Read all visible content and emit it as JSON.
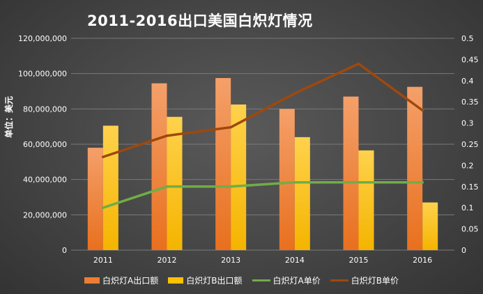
{
  "chart_data": {
    "type": "bar",
    "title": "2011-2016出口美国白炽灯情况",
    "ylabel": "单位：美元",
    "categories": [
      "2011",
      "2012",
      "2013",
      "2014",
      "2015",
      "2016"
    ],
    "ylim": [
      0,
      120000000
    ],
    "y_ticks": [
      "0",
      "20,000,000",
      "40,000,000",
      "60,000,000",
      "80,000,000",
      "100,000,000",
      "120,000,000"
    ],
    "y2lim": [
      0,
      0.5
    ],
    "y2_ticks": [
      "0",
      "0.05",
      "0.1",
      "0.15",
      "0.2",
      "0.25",
      "0.3",
      "0.35",
      "0.4",
      "0.45",
      "0.5"
    ],
    "grid": true,
    "legend_position": "bottom",
    "series": [
      {
        "name": "白炽灯A出口额",
        "kind": "bar",
        "axis": "left",
        "color": "#ED7D31",
        "values": [
          58000000,
          94500000,
          97500000,
          80000000,
          87000000,
          92500000
        ]
      },
      {
        "name": "白炽灯B出口额",
        "kind": "bar",
        "axis": "left",
        "color": "#FFC000",
        "values": [
          70500000,
          75500000,
          82500000,
          64000000,
          56500000,
          27000000
        ]
      },
      {
        "name": "白炽灯A单价",
        "kind": "line",
        "axis": "right",
        "color": "#70AD47",
        "values": [
          0.1,
          0.15,
          0.15,
          0.16,
          0.16,
          0.16
        ]
      },
      {
        "name": "白炽灯B单价",
        "kind": "line",
        "axis": "right",
        "color": "#9E480E",
        "values": [
          0.22,
          0.27,
          0.29,
          0.37,
          0.44,
          0.33
        ]
      }
    ]
  }
}
